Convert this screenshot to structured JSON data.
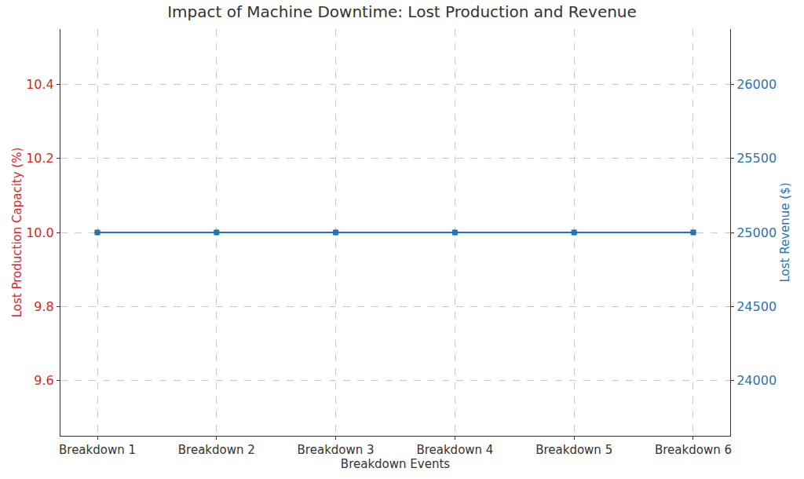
{
  "chart_data": {
    "type": "line",
    "title": "Impact of Machine Downtime: Lost Production and Revenue",
    "x_label": "Breakdown Events",
    "y_label": "Lost Production Capacity (%)",
    "y2_label": "Lost Revenue ($)",
    "categories": [
      "Breakdown 1",
      "Breakdown 2",
      "Breakdown 3",
      "Breakdown 4",
      "Breakdown 5",
      "Breakdown 6"
    ],
    "series": [
      {
        "color": "#d62728",
        "marker": "circle",
        "line_style": "solid",
        "axis": "y",
        "values": [
          10,
          10,
          10,
          10,
          10,
          10
        ]
      },
      {
        "color": "#1f77b4",
        "marker": "square",
        "line_style": "solid",
        "axis": "y2",
        "values": [
          25000,
          25000,
          25000,
          25000,
          25000,
          25000
        ]
      }
    ],
    "ylim": [
      9.45,
      10.55
    ],
    "yticks": [
      9.6,
      9.8,
      {
        "value": 10,
        "label": "10.0"
      },
      10.2,
      10.4
    ],
    "y2lim": [
      23625,
      26375
    ],
    "y2ticks": [
      24000,
      24500,
      25000,
      25500,
      26000
    ],
    "grid": true
  }
}
